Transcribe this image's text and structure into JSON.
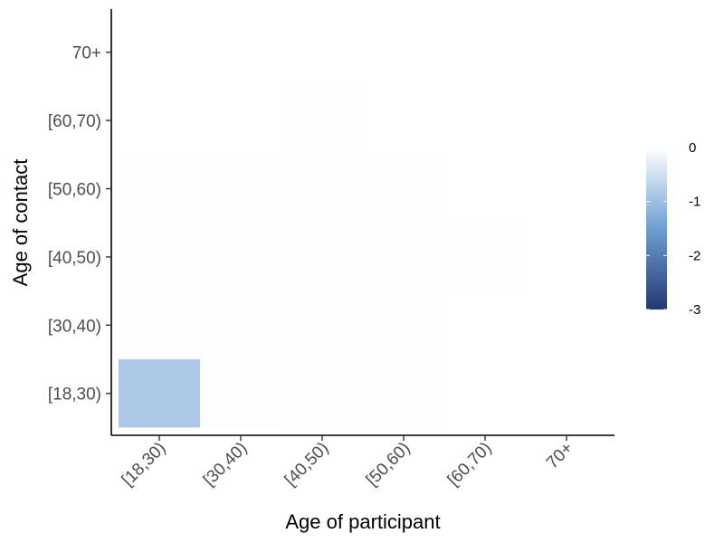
{
  "chart_data": {
    "type": "heatmap",
    "x_categories": [
      "[18,30)",
      "[30,40)",
      "[40,50)",
      "[50,60)",
      "[60,70)",
      "70+"
    ],
    "y_categories": [
      "[18,30)",
      "[30,40)",
      "[40,50)",
      "[50,60)",
      "[60,70)",
      "70+"
    ],
    "xlabel": "Age of participant",
    "ylabel": "Age of contact",
    "title": "",
    "color_scale": {
      "min": -3,
      "max": 0,
      "low_color": "#253873",
      "mid_color": "#6e9fd4",
      "high_color": "#ffffff",
      "ticks": [
        0,
        -1,
        -2,
        -3
      ],
      "tick_labels": [
        "0",
        "-1",
        "-2",
        "-3"
      ]
    },
    "cells": [
      {
        "x": "[18,30)",
        "y": "[18,30)",
        "value": -0.85
      },
      {
        "x": "[18,30)",
        "y": "[30,40)",
        "value": -0.02
      },
      {
        "x": "[18,30)",
        "y": "[40,50)",
        "value": -0.02
      },
      {
        "x": "[18,30)",
        "y": "[50,60)",
        "value": -0.02
      },
      {
        "x": "[30,40)",
        "y": "[18,30)",
        "value": -0.03
      },
      {
        "x": "[30,40)",
        "y": "[30,40)",
        "value": -0.02
      },
      {
        "x": "[30,40)",
        "y": "[40,50)",
        "value": -0.02
      },
      {
        "x": "[30,40)",
        "y": "[50,60)",
        "value": -0.02
      },
      {
        "x": "[40,50)",
        "y": "[18,30)",
        "value": -0.02
      },
      {
        "x": "[40,50)",
        "y": "[30,40)",
        "value": -0.02
      },
      {
        "x": "[40,50)",
        "y": "[40,50)",
        "value": -0.03
      },
      {
        "x": "[40,50)",
        "y": "[50,60)",
        "value": -0.02
      },
      {
        "x": "[40,50)",
        "y": "[60,70)",
        "value": -0.02
      },
      {
        "x": "[50,60)",
        "y": "[18,30)",
        "value": -0.01
      },
      {
        "x": "[50,60)",
        "y": "[30,40)",
        "value": -0.01
      },
      {
        "x": "[50,60)",
        "y": "[40,50)",
        "value": -0.01
      },
      {
        "x": "[50,60)",
        "y": "[50,60)",
        "value": -0.01
      },
      {
        "x": "[60,70)",
        "y": "[40,50)",
        "value": -0.01
      }
    ]
  }
}
